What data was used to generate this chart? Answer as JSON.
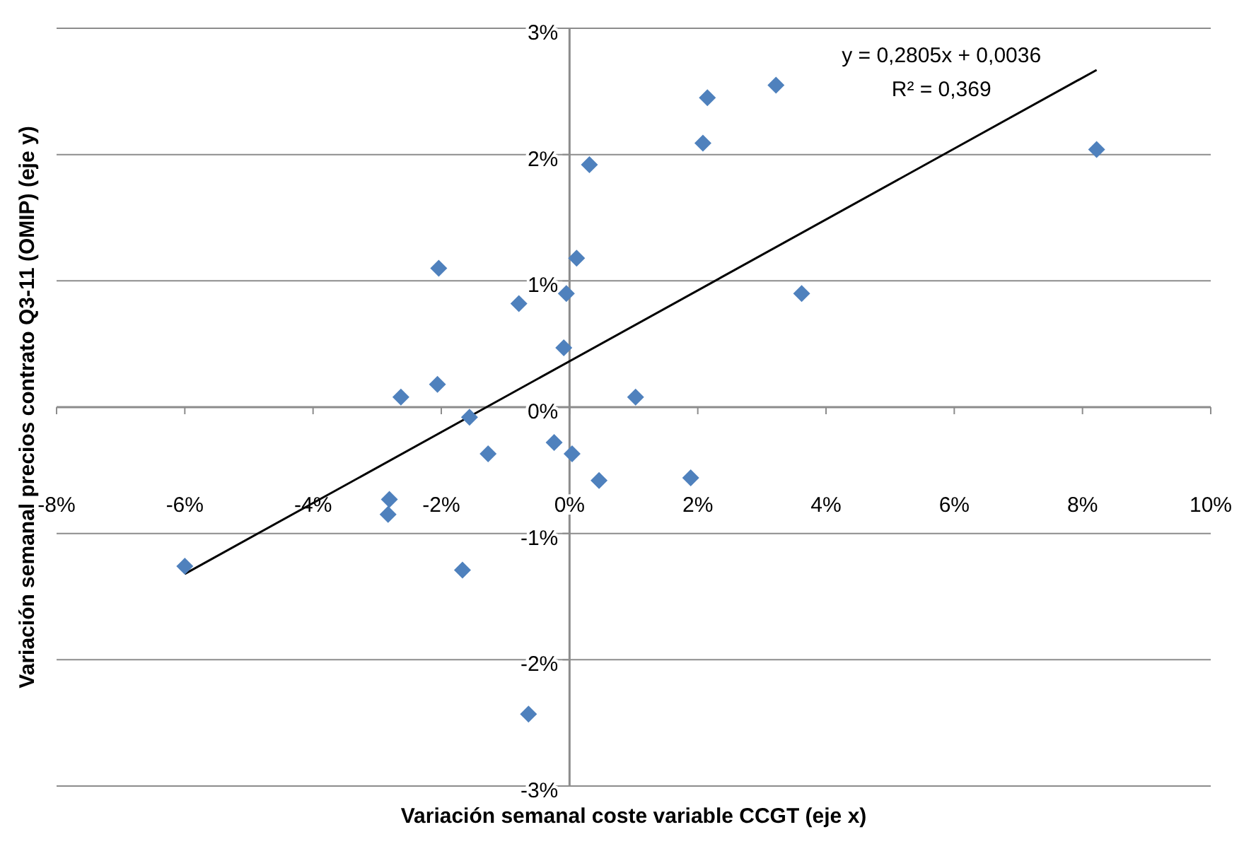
{
  "chart_data": {
    "type": "scatter",
    "xlabel": "Variación semanal coste variable  CCGT (eje x)",
    "ylabel": "Variación semanal precios contrato Q3-11 (OMIP) (eje y)",
    "annotations": [
      "y = 0,2805x + 0,0036",
      "R² = 0,369"
    ],
    "xlim": [
      -8,
      10
    ],
    "ylim": [
      -3,
      3
    ],
    "xticks": [
      {
        "value": -8,
        "label": "-8%"
      },
      {
        "value": -6,
        "label": "-6%"
      },
      {
        "value": -4,
        "label": "-4%"
      },
      {
        "value": -2,
        "label": "-2%"
      },
      {
        "value": 0,
        "label": "0%"
      },
      {
        "value": 2,
        "label": "2%"
      },
      {
        "value": 4,
        "label": "4%"
      },
      {
        "value": 6,
        "label": "6%"
      },
      {
        "value": 8,
        "label": "8%"
      },
      {
        "value": 10,
        "label": "10%"
      }
    ],
    "yticks": [
      {
        "value": -3,
        "label": "-3%"
      },
      {
        "value": -2,
        "label": "-2%"
      },
      {
        "value": -1,
        "label": "-1%"
      },
      {
        "value": 0,
        "label": "0%"
      },
      {
        "value": 1,
        "label": "1%"
      },
      {
        "value": 2,
        "label": "2%"
      },
      {
        "value": 3,
        "label": "3%"
      }
    ],
    "grid": "y",
    "series": [
      {
        "marker": "diamond",
        "color": "#4f81bd",
        "x": [
          -6.0,
          -2.63,
          -2.81,
          -2.83,
          -2.06,
          -2.04,
          -1.67,
          -1.56,
          -1.27,
          -0.79,
          -0.64,
          -0.24,
          -0.09,
          -0.05,
          0.04,
          0.11,
          0.31,
          0.46,
          1.03,
          1.89,
          2.08,
          2.15,
          3.22,
          3.62,
          8.22
        ],
        "values": [
          -1.26,
          0.08,
          -0.73,
          -0.85,
          0.18,
          1.1,
          -1.29,
          -0.08,
          -0.37,
          0.82,
          -2.43,
          -0.28,
          0.47,
          0.9,
          -0.37,
          1.18,
          1.92,
          -0.58,
          0.08,
          -0.56,
          2.09,
          2.45,
          2.55,
          0.9,
          2.04
        ]
      },
      {
        "type": "line",
        "marker": "none",
        "color": "#000000",
        "x": [
          -6.0,
          8.22
        ],
        "values": [
          -1.32,
          2.67
        ]
      }
    ]
  }
}
